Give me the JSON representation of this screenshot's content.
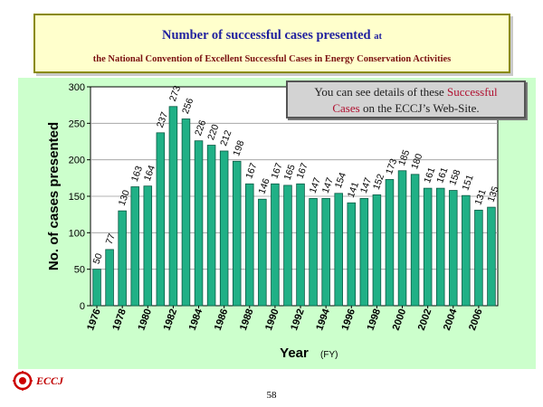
{
  "title": {
    "main": "Number of successful cases presented",
    "main_suffix": "at",
    "sub": "the National Convention of Excellent Successful Cases in Energy Conservation Activities"
  },
  "note": {
    "part1": "You can see details of these ",
    "highlight1": "Successful",
    "highlight2": "Cases",
    "part2": " on the ECCJ’s Web-Site."
  },
  "footer": {
    "logo_text": "ECCJ",
    "page_number": "58"
  },
  "colors": {
    "bar": "#20b086",
    "bar_edge": "#0b5a44",
    "panel": "#ccffcc",
    "title_text": "#1f1f9f",
    "note_highlight": "#b01030"
  },
  "chart_data": {
    "type": "bar",
    "x": [
      1976,
      1977,
      1978,
      1979,
      1980,
      1981,
      1982,
      1983,
      1984,
      1985,
      1986,
      1987,
      1988,
      1989,
      1990,
      1991,
      1992,
      1993,
      1994,
      1995,
      1996,
      1997,
      1998,
      1999,
      2000,
      2001,
      2002,
      2003,
      2004,
      2005,
      2006,
      2007
    ],
    "values": [
      50,
      77,
      130,
      163,
      164,
      237,
      273,
      256,
      226,
      220,
      212,
      198,
      167,
      146,
      167,
      165,
      167,
      147,
      147,
      154,
      141,
      147,
      152,
      173,
      185,
      180,
      161,
      161,
      158,
      151,
      131,
      135
    ],
    "xtick_labels": [
      "1976",
      "1978",
      "1980",
      "1982",
      "1984",
      "1986",
      "1988",
      "1990",
      "1992",
      "1994",
      "1996",
      "1998",
      "2000",
      "2002",
      "2004",
      "2006"
    ],
    "yticks": [
      0,
      50,
      100,
      150,
      200,
      250,
      300
    ],
    "ylim": [
      0,
      300
    ],
    "ylabel": "No. of cases presented",
    "xlabel": "Year",
    "xlabel_unit": "(FY)",
    "grid": true
  }
}
